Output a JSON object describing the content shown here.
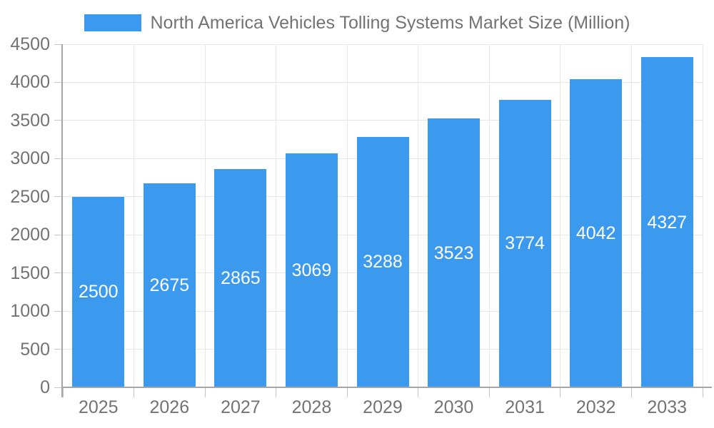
{
  "chart_data": {
    "type": "bar",
    "title": "North America Vehicles Tolling Systems Market Size (Million)",
    "legend": {
      "position": "top",
      "label": "North America Vehicles Tolling Systems Market Size (Million)"
    },
    "categories": [
      "2025",
      "2026",
      "2027",
      "2028",
      "2029",
      "2030",
      "2031",
      "2032",
      "2033"
    ],
    "values": [
      2500,
      2675,
      2865,
      3069,
      3288,
      3523,
      3774,
      4042,
      4327
    ],
    "xlabel": "",
    "ylabel": "",
    "ylim": [
      0,
      4500
    ],
    "yticks": [
      0,
      500,
      1000,
      1500,
      2000,
      2500,
      3000,
      3500,
      4000,
      4500
    ],
    "grid": true,
    "value_labels": "inside-center",
    "bar_color": "#3b99ee",
    "value_label_color": "#ffffff",
    "axis_text_color": "#737373",
    "grid_color": "#e7e7e7",
    "axis_line_color": "#a6a6a6",
    "tick_color": "#c6c6c6",
    "background_color": "#ffffff"
  }
}
